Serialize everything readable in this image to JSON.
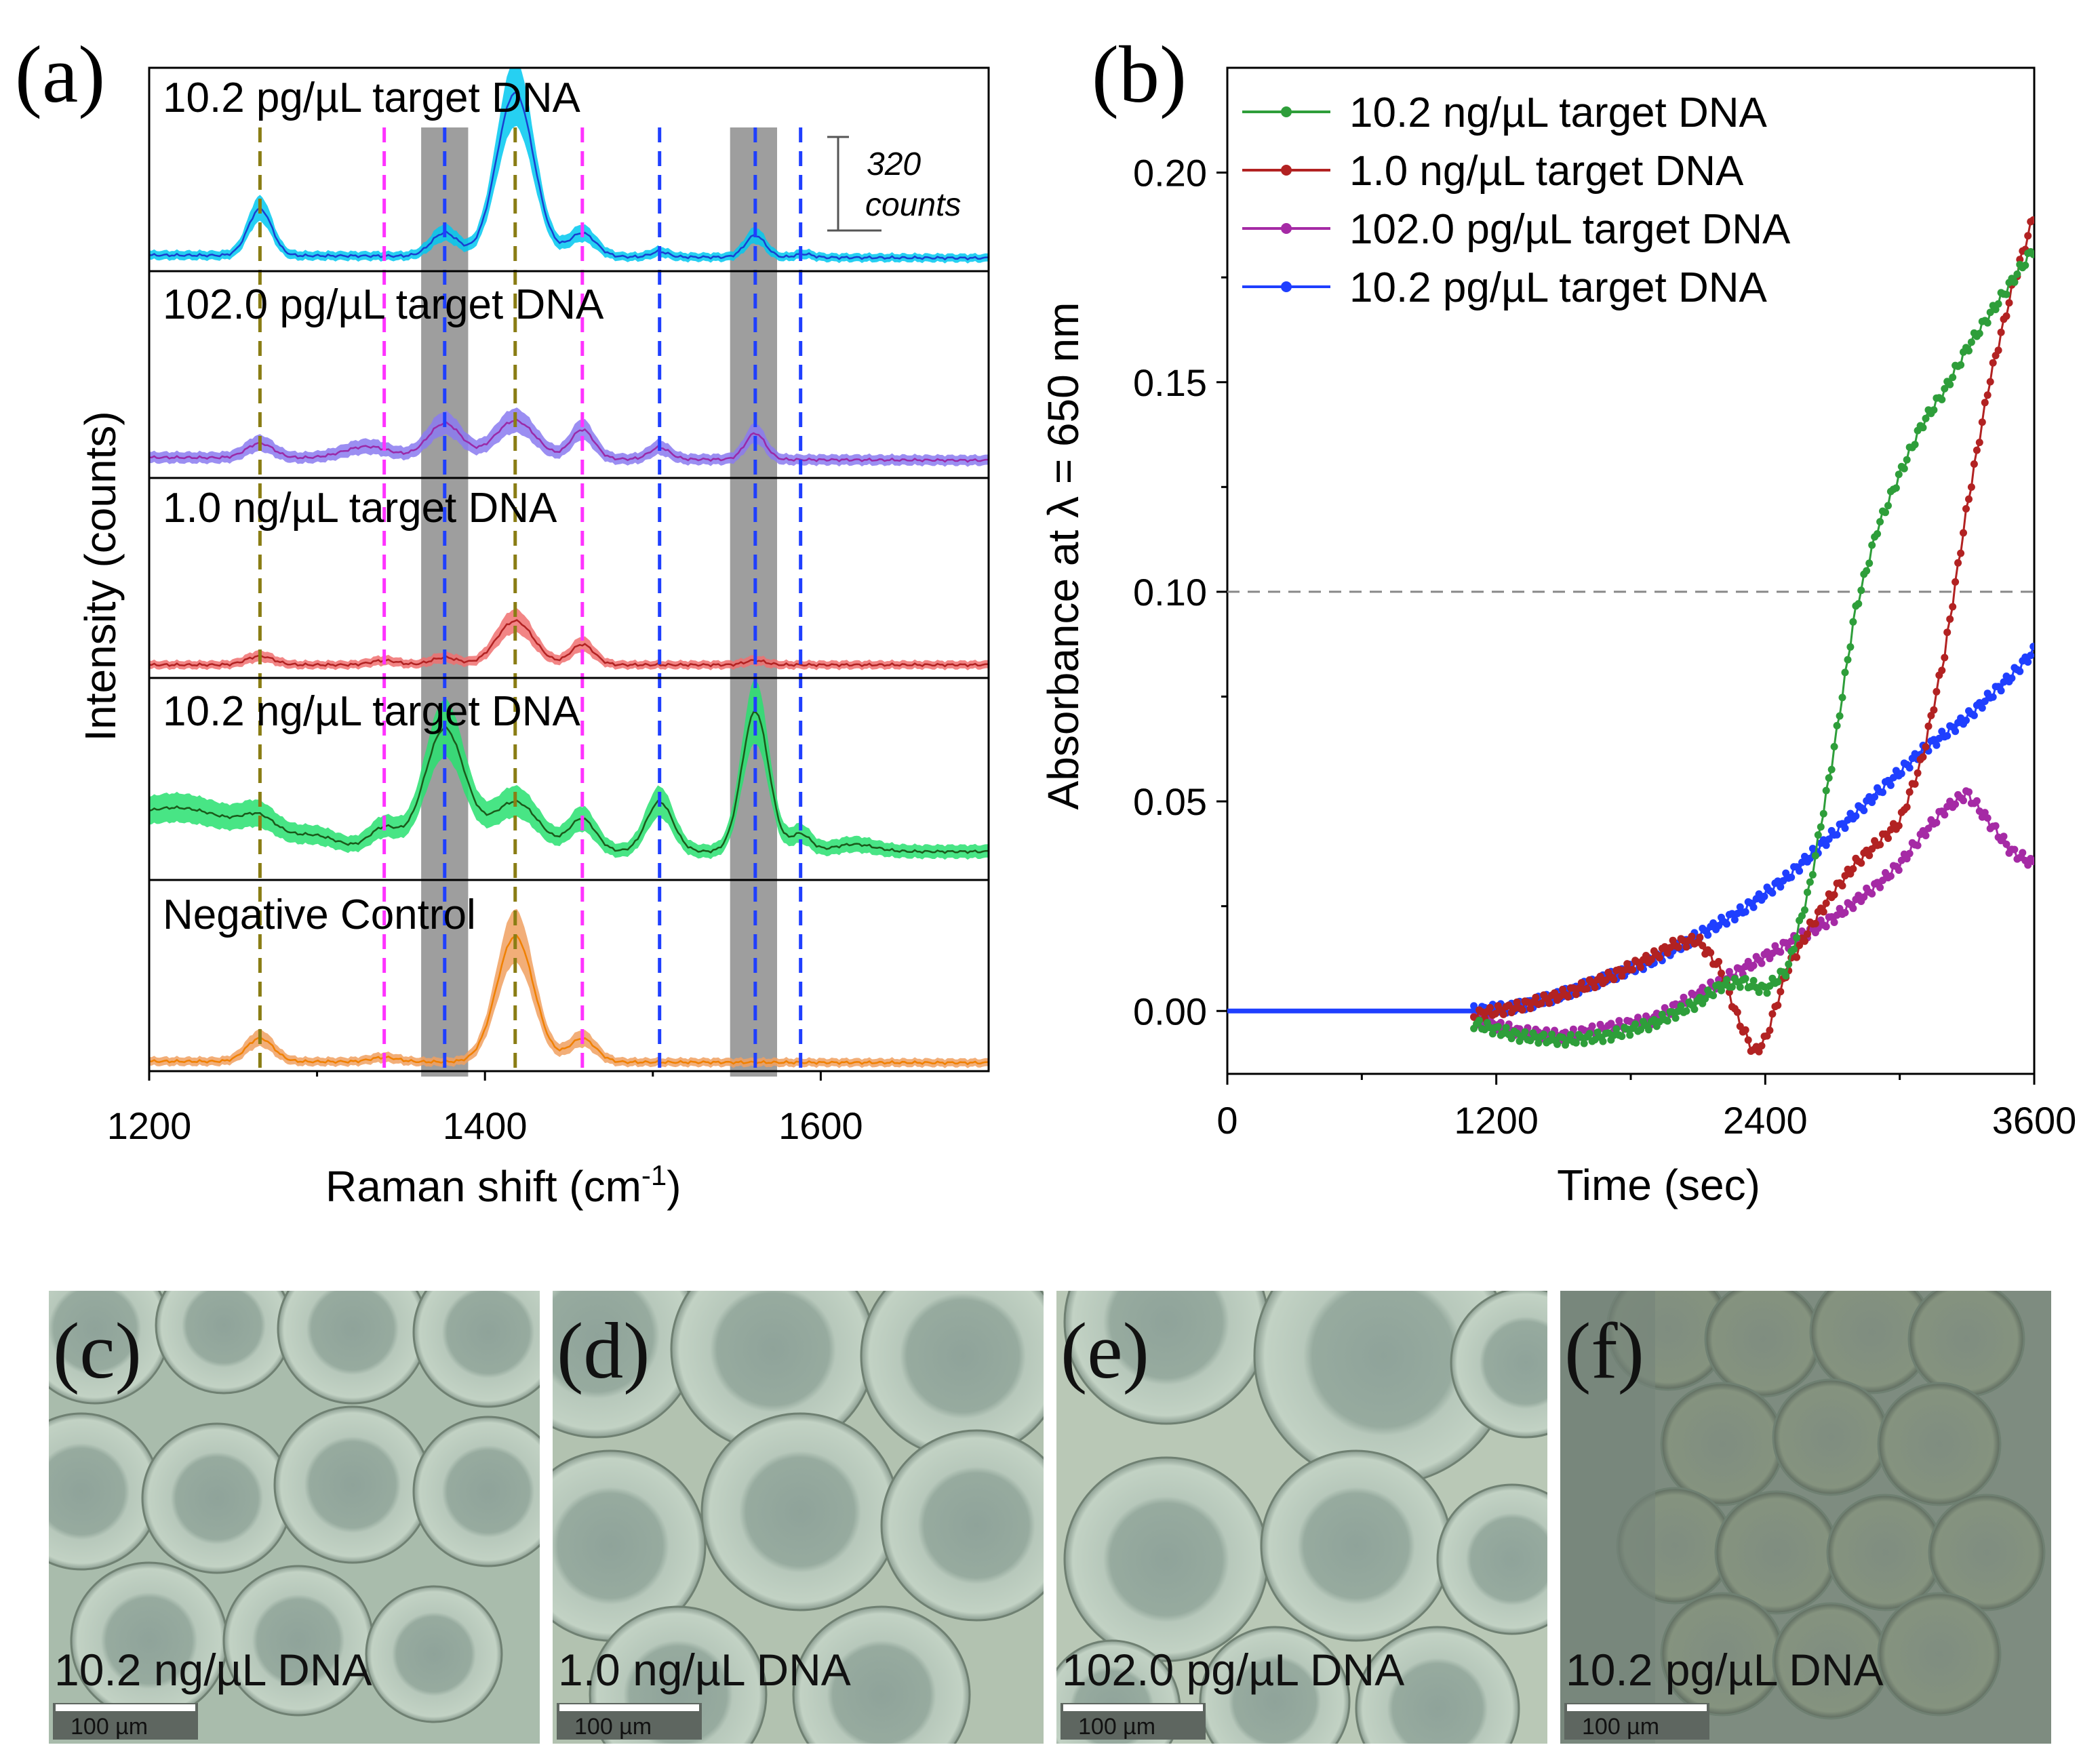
{
  "panel_letters": [
    "(a)",
    "(b)",
    "(c)",
    "(d)",
    "(e)",
    "(f)"
  ],
  "colors": {
    "green": "#2e9e3a",
    "red": "#b22222",
    "purple": "#a52aa5",
    "blue": "#1f3fff",
    "olive": "#8a7d14",
    "magenta": "#ff33ff",
    "dashblue": "#1f3fff",
    "gray_band": "#9e9e9e"
  },
  "chart_data": [
    {
      "id": "a",
      "type": "line",
      "title": "",
      "xlabel": "Raman shift (cm",
      "xlabel_sup": "-1",
      "xlabel_tail": ")",
      "ylabel": "Intensity (counts)",
      "xlim": [
        1200,
        1700
      ],
      "xticks": [
        1200,
        1400,
        1600
      ],
      "scale_bar": {
        "value": "320",
        "unit": "counts"
      },
      "gray_bands": [
        [
          1362,
          1390
        ],
        [
          1546,
          1574
        ]
      ],
      "dashed_lines": [
        {
          "x": 1266,
          "color": "olive"
        },
        {
          "x": 1418,
          "color": "olive"
        },
        {
          "x": 1340,
          "color": "magenta"
        },
        {
          "x": 1458,
          "color": "magenta"
        },
        {
          "x": 1376,
          "color": "dashblue"
        },
        {
          "x": 1504,
          "color": "dashblue"
        },
        {
          "x": 1561,
          "color": "dashblue"
        },
        {
          "x": 1588,
          "color": "dashblue"
        }
      ],
      "series": [
        {
          "name": "10.2  pg/µL target DNA",
          "line": "#1a3fd0",
          "band": "#00c8f0",
          "baseline": 20,
          "slope": -0.02,
          "peaks": [
            [
              1266,
              160,
              7
            ],
            [
              1376,
              80,
              8
            ],
            [
              1418,
              560,
              11
            ],
            [
              1458,
              80,
              8
            ],
            [
              1504,
              18,
              5
            ],
            [
              1561,
              75,
              6
            ],
            [
              1590,
              12,
              5
            ]
          ]
        },
        {
          "name": "102.0 pg/µL target DNA",
          "line": "#9a2aa8",
          "band": "#8a7af0",
          "baseline": 40,
          "slope": -0.02,
          "peaks": [
            [
              1266,
              50,
              8
            ],
            [
              1330,
              40,
              14
            ],
            [
              1376,
              120,
              10
            ],
            [
              1418,
              130,
              12
            ],
            [
              1458,
              100,
              7
            ],
            [
              1504,
              40,
              6
            ],
            [
              1561,
              90,
              6
            ]
          ]
        },
        {
          "name": "1.0 ng/µL target DNA",
          "line": "#b22222",
          "band": "#f07070",
          "baseline": 10,
          "slope": 0,
          "peaks": [
            [
              1266,
              30,
              8
            ],
            [
              1340,
              15,
              8
            ],
            [
              1376,
              25,
              8
            ],
            [
              1418,
              150,
              11
            ],
            [
              1458,
              70,
              7
            ],
            [
              1561,
              15,
              6
            ]
          ]
        },
        {
          "name": "10.2 ng/µL target DNA",
          "line": "#1a5a1a",
          "band": "#28e070",
          "baseline": 60,
          "slope": 0,
          "bump": [
            1215,
            150,
            12
          ],
          "peaks": [
            [
              1266,
              60,
              10
            ],
            [
              1300,
              40,
              14
            ],
            [
              1340,
              80,
              9
            ],
            [
              1376,
              420,
              12
            ],
            [
              1418,
              170,
              14
            ],
            [
              1458,
              110,
              8
            ],
            [
              1504,
              170,
              8
            ],
            [
              1561,
              480,
              8
            ],
            [
              1588,
              60,
              6
            ],
            [
              1620,
              25,
              12
            ]
          ]
        },
        {
          "name": "Negative Control",
          "line": "#f08000",
          "band": "#f0a060",
          "baseline": 15,
          "slope": -0.01,
          "peaks": [
            [
              1266,
              80,
              8
            ],
            [
              1340,
              15,
              8
            ],
            [
              1418,
              430,
              11
            ],
            [
              1458,
              80,
              8
            ]
          ]
        }
      ]
    },
    {
      "id": "b",
      "type": "line",
      "xlabel": "Time (sec)",
      "ylabel": "Absorbance at λ = 650 nm",
      "xlim": [
        0,
        3600
      ],
      "ylim": [
        -0.015,
        0.225
      ],
      "xticks": [
        0,
        1200,
        2400,
        3600
      ],
      "yticks": [
        0.0,
        0.05,
        0.1,
        0.15,
        0.2
      ],
      "ytick_labels": [
        "0.00",
        "0.05",
        "0.10",
        "0.15",
        "0.20"
      ],
      "threshold": 0.1,
      "series": [
        {
          "name": "10.2 ng/µL target DNA",
          "color": "#2e9e3a",
          "x": [
            1100,
            1300,
            1500,
            1700,
            1900,
            2100,
            2200,
            2300,
            2400,
            2500,
            2600,
            2700,
            2800,
            2900,
            3000,
            3100,
            3200,
            3300,
            3400,
            3500,
            3600
          ],
          "y": [
            -0.003,
            -0.006,
            -0.007,
            -0.006,
            -0.003,
            0.002,
            0.006,
            0.007,
            0.005,
            0.01,
            0.03,
            0.06,
            0.095,
            0.115,
            0.128,
            0.14,
            0.148,
            0.158,
            0.166,
            0.174,
            0.182
          ]
        },
        {
          "name": "1.0 ng/µL target DNA",
          "color": "#b22222",
          "x": [
            1100,
            1300,
            1500,
            1700,
            1900,
            2000,
            2100,
            2200,
            2280,
            2350,
            2400,
            2500,
            2600,
            2700,
            2800,
            2900,
            3000,
            3100,
            3200,
            3300,
            3400,
            3500,
            3600
          ],
          "y": [
            -0.001,
            0.001,
            0.004,
            0.008,
            0.013,
            0.016,
            0.017,
            0.01,
            -0.002,
            -0.01,
            -0.007,
            0.01,
            0.02,
            0.028,
            0.035,
            0.04,
            0.045,
            0.06,
            0.085,
            0.12,
            0.15,
            0.172,
            0.19
          ]
        },
        {
          "name": "102.0 pg/µL target DNA",
          "color": "#a52aa5",
          "x": [
            1100,
            1300,
            1500,
            1700,
            1900,
            2100,
            2300,
            2500,
            2700,
            2900,
            3000,
            3100,
            3200,
            3300,
            3400,
            3500,
            3600
          ],
          "y": [
            -0.002,
            -0.005,
            -0.006,
            -0.004,
            -0.002,
            0.004,
            0.01,
            0.016,
            0.022,
            0.03,
            0.035,
            0.042,
            0.048,
            0.052,
            0.045,
            0.038,
            0.035
          ]
        },
        {
          "name": "10.2 pg/µL target DNA",
          "color": "#1f3fff",
          "x": [
            0,
            1080,
            1100,
            1300,
            1500,
            1700,
            1900,
            2100,
            2300,
            2500,
            2700,
            2900,
            3100,
            3300,
            3500,
            3600
          ],
          "y": [
            0,
            0,
            0.0,
            0.001,
            0.004,
            0.008,
            0.012,
            0.018,
            0.024,
            0.032,
            0.042,
            0.052,
            0.062,
            0.07,
            0.08,
            0.086
          ]
        }
      ]
    }
  ],
  "micrographs": [
    {
      "letter": "(c)",
      "caption": "10.2 ng/µL DNA",
      "scale": "100 µm"
    },
    {
      "letter": "(d)",
      "caption": "1.0 ng/µL DNA",
      "scale": "100 µm"
    },
    {
      "letter": "(e)",
      "caption": "102.0 pg/µL DNA",
      "scale": "100 µm"
    },
    {
      "letter": "(f)",
      "caption": "10.2 pg/µL DNA",
      "scale": "100 µm"
    }
  ]
}
